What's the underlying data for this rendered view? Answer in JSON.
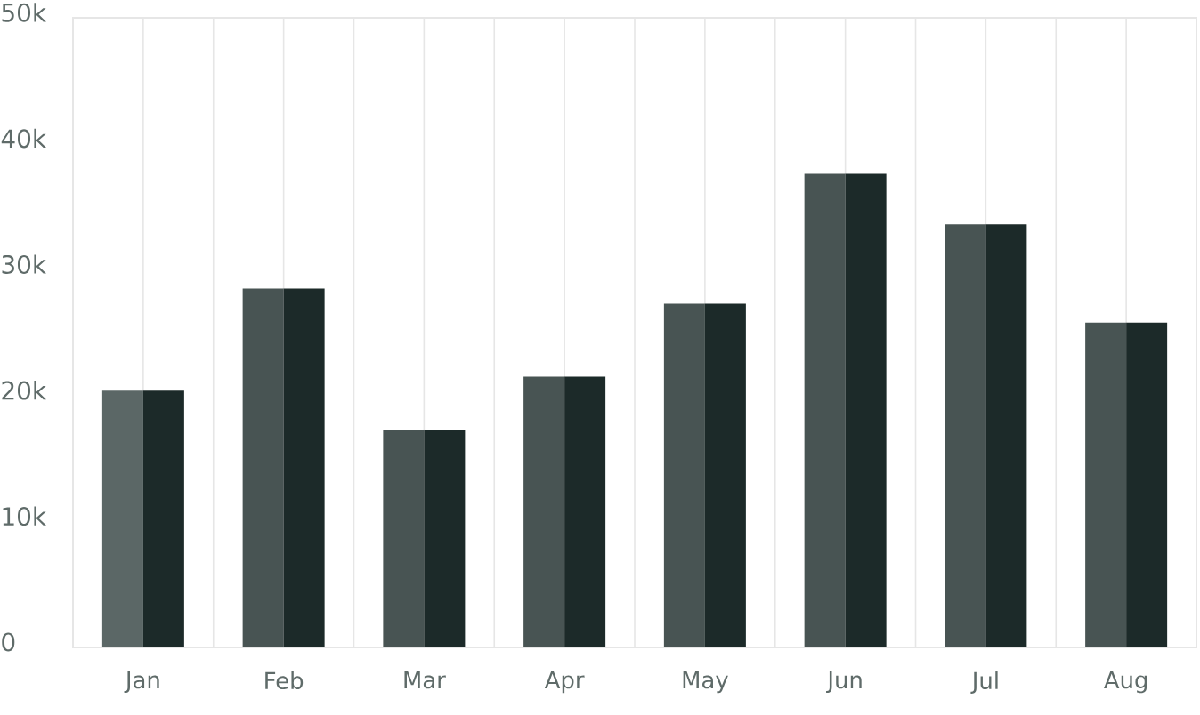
{
  "chart_data": {
    "type": "bar",
    "categories": [
      "Jan",
      "Feb",
      "Mar",
      "Apr",
      "May",
      "Jun",
      "Jul",
      "Aug"
    ],
    "series": [
      {
        "colors": [
          "#5b6766",
          "#485453",
          "#485453",
          "#485453",
          "#485453",
          "#485453",
          "#485453",
          "#485453"
        ],
        "values": [
          20400,
          28500,
          17300,
          21500,
          27300,
          37600,
          33600,
          25800
        ]
      },
      {
        "color": "#1c2a29",
        "values": [
          20400,
          28500,
          17300,
          21500,
          27300,
          37600,
          33600,
          25800
        ]
      }
    ],
    "ylim": [
      0,
      50000
    ],
    "yticks": [
      {
        "value": 0,
        "label": "0"
      },
      {
        "value": 10000,
        "label": "10k"
      },
      {
        "value": 20000,
        "label": "20k"
      },
      {
        "value": 30000,
        "label": "30k"
      },
      {
        "value": 40000,
        "label": "40k"
      },
      {
        "value": 50000,
        "label": "50k"
      }
    ],
    "grid": "x"
  }
}
